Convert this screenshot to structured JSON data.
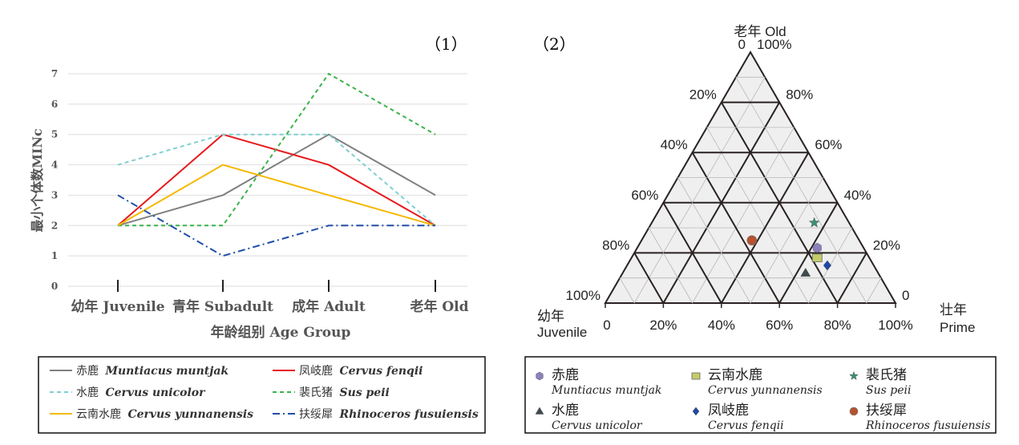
{
  "chart_data": [
    {
      "type": "line",
      "panel_label": "（1）",
      "xlabel": "年龄组别 Age Group",
      "ylabel": "最小个体数MINc",
      "categories": [
        "幼年 Juvenile",
        "青年 Subadult",
        "成年 Adult",
        "老年 Old"
      ],
      "ylim": [
        0,
        7
      ],
      "yticks": [
        "0",
        "1",
        "2",
        "3",
        "4",
        "5",
        "6",
        "7"
      ],
      "grid": true,
      "legend_position": "bottom",
      "series": [
        {
          "name_cn": "赤鹿",
          "name_la": "Muntiacus muntjak",
          "color": "#808080",
          "dash": "solid",
          "values": [
            2,
            3,
            5,
            3
          ]
        },
        {
          "name_cn": "凤岐鹿",
          "name_la": "Cervus fenqii",
          "color": "#e8191c",
          "dash": "solid",
          "values": [
            2,
            5,
            4,
            2
          ]
        },
        {
          "name_cn": "水鹿",
          "name_la": "Cervus unicolor",
          "color": "#7ecfcf",
          "dash": "dash",
          "values": [
            4,
            5,
            5,
            2
          ]
        },
        {
          "name_cn": "裴氏猪",
          "name_la": "Sus peii",
          "color": "#3cb44b",
          "dash": "dash",
          "values": [
            2,
            2,
            7,
            5
          ]
        },
        {
          "name_cn": "云南水鹿",
          "name_la": "Cervus yunnanensis",
          "color": "#f5b800",
          "dash": "solid",
          "values": [
            2,
            4,
            3,
            2
          ]
        },
        {
          "name_cn": "扶绥犀",
          "name_la": "Rhinoceros fusuiensis",
          "color": "#1f4ea8",
          "dash": "dashdot",
          "values": [
            3,
            1,
            2,
            2
          ]
        }
      ]
    },
    {
      "type": "scatter",
      "subtype": "ternary",
      "panel_label": "（2）",
      "axes": {
        "top": "老年 Old",
        "left_cn": "幼年",
        "left_en": "Juvenile",
        "right_cn": "壮年",
        "right_en": "Prime"
      },
      "left_ticks": [
        "0",
        "20%",
        "40%",
        "60%",
        "80%",
        "100%"
      ],
      "right_ticks": [
        "100%",
        "80%",
        "60%",
        "40%",
        "20%",
        "0"
      ],
      "bottom_ticks": [
        "0",
        "20%",
        "40%",
        "60%",
        "80%",
        "100%"
      ],
      "legend_position": "bottom",
      "points": [
        {
          "name_cn": "赤鹿",
          "name_la": "Muntiacus muntjak",
          "marker": "hexagon",
          "color": "#8d80bd",
          "juvenile": 0.16,
          "prime": 0.62,
          "old": 0.22
        },
        {
          "name_cn": "云南水鹿",
          "name_la": "Cervus yunnanensis",
          "marker": "square",
          "color": "#c4cc6a",
          "juvenile": 0.18,
          "prime": 0.64,
          "old": 0.18
        },
        {
          "name_cn": "裴氏猪",
          "name_la": "Sus peii",
          "marker": "star",
          "color": "#3a8f78",
          "juvenile": 0.12,
          "prime": 0.56,
          "old": 0.32
        },
        {
          "name_cn": "水鹿",
          "name_la": "Cervus unicolor",
          "marker": "triangle",
          "color": "#3f4a4f",
          "juvenile": 0.25,
          "prime": 0.63,
          "old": 0.12
        },
        {
          "name_cn": "凤岐鹿",
          "name_la": "Cervus fenqii",
          "marker": "diamond",
          "color": "#1e48a8",
          "juvenile": 0.16,
          "prime": 0.69,
          "old": 0.15
        },
        {
          "name_cn": "扶绥犀",
          "name_la": "Rhinoceros fusuiensis",
          "marker": "circle",
          "color": "#b5532e",
          "juvenile": 0.37,
          "prime": 0.38,
          "old": 0.25
        }
      ]
    }
  ]
}
